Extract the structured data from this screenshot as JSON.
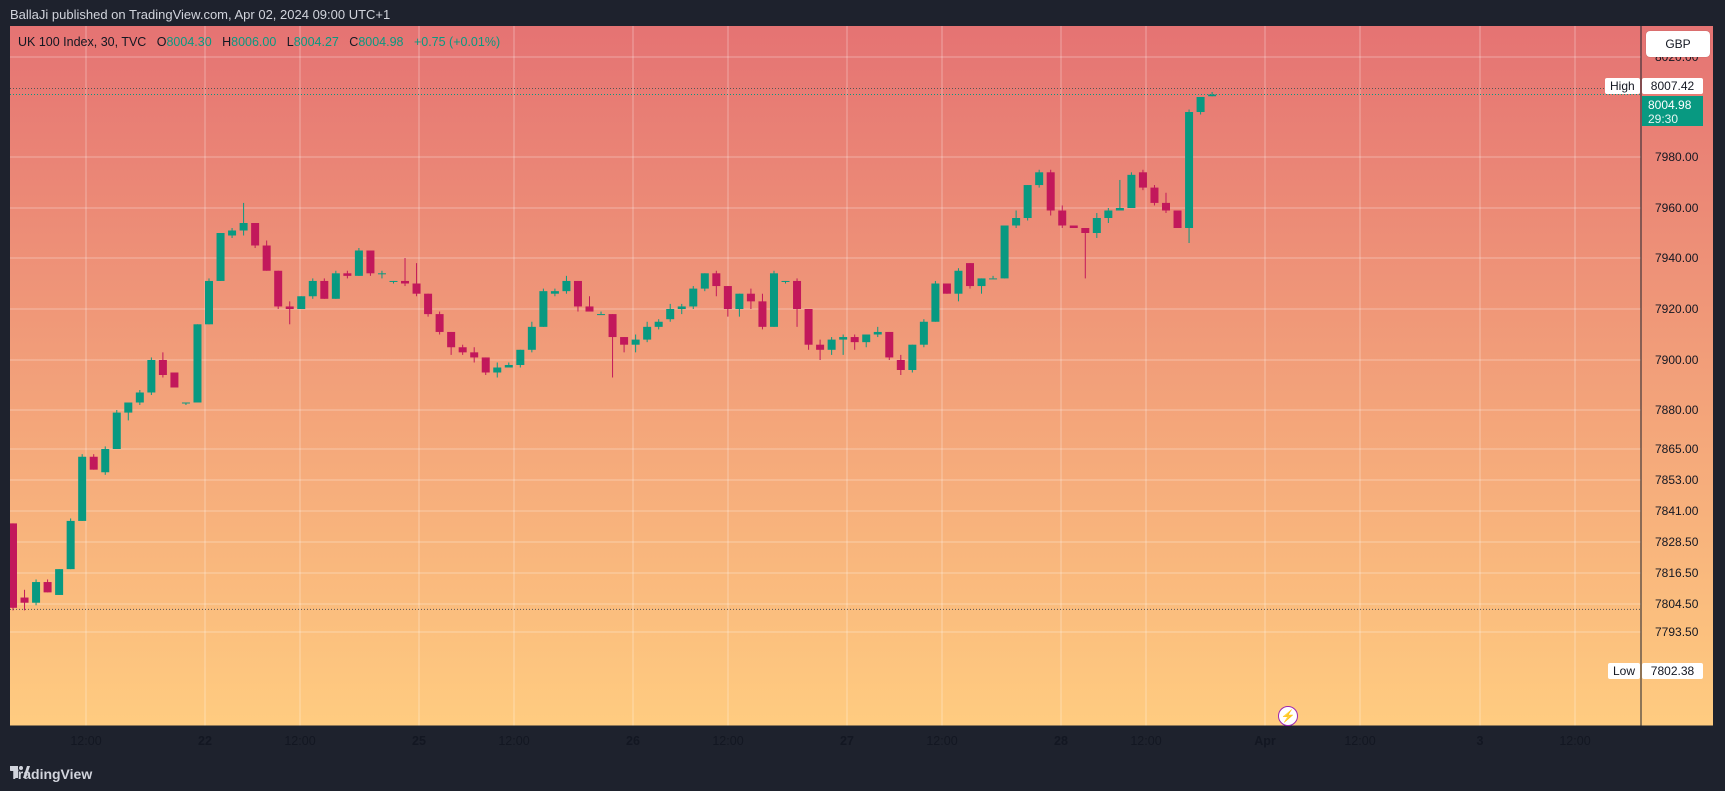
{
  "header": {
    "published_line": "BallaJi published on TradingView.com, Apr 02, 2024 09:00 UTC+1"
  },
  "footer": {
    "logo_text": "TradingView"
  },
  "legend": {
    "symbol": "UK 100 Index, 30, TVC",
    "o_label": "O",
    "o_value": "8004.30",
    "h_label": "H",
    "h_value": "8006.00",
    "l_label": "L",
    "l_value": "8004.27",
    "c_label": "C",
    "c_value": "8004.98",
    "change": "+0.75 (+0.01%)"
  },
  "currency_button": "GBP",
  "price_markers": {
    "high_label": "High",
    "high_value": "8007.42",
    "low_label": "Low",
    "low_value": "7802.38",
    "last_price": "8004.98",
    "countdown": "29:30"
  },
  "colors": {
    "up": "#089981",
    "down": "#c2185b",
    "bg_top": "#e57373",
    "bg_bottom": "#ffcc80",
    "frame": "#1e222d"
  },
  "chart_data": {
    "type": "candlestick",
    "symbol": "UK 100 Index",
    "interval": "30",
    "source": "TVC",
    "currency": "GBP",
    "y_axis_ticks": [
      "8020.00",
      "7980.00",
      "7960.00",
      "7940.00",
      "7920.00",
      "7900.00",
      "7880.00",
      "7865.00",
      "7853.00",
      "7841.00",
      "7828.50",
      "7816.50",
      "7804.50",
      "7793.50"
    ],
    "x_axis_ticks": [
      "12:00",
      "22",
      "12:00",
      "25",
      "12:00",
      "26",
      "12:00",
      "27",
      "12:00",
      "28",
      "12:00",
      "Apr",
      "12:00",
      "3",
      "12:00"
    ],
    "y_scale": "non-linear (compressed below 7880)",
    "grid": true,
    "high": 8007.42,
    "low": 7802.38,
    "ohlc": [
      [
        7836,
        7836,
        7802,
        7803
      ],
      [
        7807,
        7810,
        7802,
        7805
      ],
      [
        7805,
        7814,
        7804,
        7813
      ],
      [
        7813,
        7814,
        7809,
        7809
      ],
      [
        7808,
        7818,
        7808,
        7818
      ],
      [
        7818,
        7838,
        7818,
        7837
      ],
      [
        7837,
        7863,
        7837,
        7862
      ],
      [
        7862,
        7863,
        7857,
        7857
      ],
      [
        7856,
        7866,
        7855,
        7865
      ],
      [
        7865,
        7880,
        7865,
        7879
      ],
      [
        7879,
        7883,
        7876,
        7883
      ],
      [
        7883,
        7888,
        7882,
        7887
      ],
      [
        7887,
        7901,
        7886,
        7900
      ],
      [
        7900,
        7903,
        7893,
        7894
      ],
      [
        7895,
        7895,
        7889,
        7889
      ],
      [
        7883,
        7883,
        7882,
        7883
      ],
      [
        7883,
        7914,
        7883,
        7914
      ],
      [
        7914,
        7932,
        7914,
        7931
      ],
      [
        7931,
        7950,
        7931,
        7950
      ],
      [
        7949,
        7952,
        7948,
        7951
      ],
      [
        7951,
        7962,
        7949,
        7954
      ],
      [
        7954,
        7954,
        7944,
        7945
      ],
      [
        7945,
        7947,
        7935,
        7935
      ],
      [
        7935,
        7935,
        7920,
        7921
      ],
      [
        7921,
        7923,
        7914,
        7920
      ],
      [
        7920,
        7925,
        7920,
        7925
      ],
      [
        7925,
        7932,
        7924,
        7931
      ],
      [
        7931,
        7932,
        7924,
        7924
      ],
      [
        7924,
        7935,
        7924,
        7934
      ],
      [
        7934,
        7935,
        7932,
        7933
      ],
      [
        7933,
        7944,
        7933,
        7943
      ],
      [
        7943,
        7943,
        7933,
        7934
      ],
      [
        7934,
        7935,
        7932,
        7934
      ],
      [
        7931,
        7931,
        7930,
        7931
      ],
      [
        7931,
        7940,
        7929,
        7930
      ],
      [
        7930,
        7938,
        7925,
        7926
      ],
      [
        7926,
        7926,
        7917,
        7918
      ],
      [
        7918,
        7919,
        7910,
        7911
      ],
      [
        7911,
        7911,
        7902,
        7905
      ],
      [
        7905,
        7906,
        7902,
        7903
      ],
      [
        7903,
        7905,
        7899,
        7901
      ],
      [
        7901,
        7901,
        7894,
        7895
      ],
      [
        7895,
        7899,
        7893,
        7897
      ],
      [
        7897,
        7899,
        7897,
        7898
      ],
      [
        7898,
        7904,
        7897,
        7904
      ],
      [
        7904,
        7915,
        7903,
        7913
      ],
      [
        7913,
        7928,
        7913,
        7927
      ],
      [
        7926,
        7928,
        7925,
        7927
      ],
      [
        7927,
        7933,
        7926,
        7931
      ],
      [
        7931,
        7931,
        7919,
        7921
      ],
      [
        7921,
        7925,
        7919,
        7919
      ],
      [
        7918,
        7919,
        7918,
        7918
      ],
      [
        7918,
        7918,
        7893,
        7909
      ],
      [
        7909,
        7909,
        7903,
        7906
      ],
      [
        7906,
        7910,
        7903,
        7908
      ],
      [
        7908,
        7915,
        7907,
        7913
      ],
      [
        7913,
        7916,
        7912,
        7915
      ],
      [
        7916,
        7922,
        7915,
        7920
      ],
      [
        7920,
        7922,
        7918,
        7921
      ],
      [
        7921,
        7929,
        7920,
        7928
      ],
      [
        7928,
        7934,
        7927,
        7934
      ],
      [
        7934,
        7935,
        7925,
        7929
      ],
      [
        7929,
        7929,
        7917,
        7920
      ],
      [
        7920,
        7926,
        7917,
        7926
      ],
      [
        7926,
        7928,
        7920,
        7923
      ],
      [
        7923,
        7926,
        7912,
        7913
      ],
      [
        7913,
        7935,
        7913,
        7934
      ],
      [
        7931,
        7931,
        7930,
        7931
      ],
      [
        7931,
        7932,
        7913,
        7920
      ],
      [
        7920,
        7920,
        7904,
        7906
      ],
      [
        7906,
        7908,
        7900,
        7904
      ],
      [
        7904,
        7909,
        7902,
        7908
      ],
      [
        7908,
        7910,
        7902,
        7909
      ],
      [
        7909,
        7910,
        7904,
        7907
      ],
      [
        7907,
        7910,
        7905,
        7910
      ],
      [
        7910,
        7913,
        7909,
        7911
      ],
      [
        7911,
        7911,
        7900,
        7901
      ],
      [
        7900,
        7902,
        7894,
        7896
      ],
      [
        7896,
        7906,
        7895,
        7906
      ],
      [
        7906,
        7916,
        7905,
        7915
      ],
      [
        7915,
        7931,
        7915,
        7930
      ],
      [
        7930,
        7930,
        7926,
        7926
      ],
      [
        7926,
        7936,
        7923,
        7935
      ],
      [
        7938,
        7938,
        7928,
        7929
      ],
      [
        7929,
        7932,
        7926,
        7932
      ],
      [
        7932,
        7933,
        7932,
        7932
      ],
      [
        7932,
        7953,
        7932,
        7953
      ],
      [
        7953,
        7959,
        7952,
        7956
      ],
      [
        7956,
        7969,
        7955,
        7969
      ],
      [
        7969,
        7975,
        7968,
        7974
      ],
      [
        7974,
        7975,
        7957,
        7959
      ],
      [
        7959,
        7961,
        7952,
        7953
      ],
      [
        7953,
        7953,
        7952,
        7952
      ],
      [
        7952,
        7952,
        7932,
        7950
      ],
      [
        7950,
        7958,
        7948,
        7956
      ],
      [
        7956,
        7960,
        7954,
        7959
      ],
      [
        7959,
        7971,
        7959,
        7960
      ],
      [
        7960,
        7974,
        7960,
        7973
      ],
      [
        7974,
        7975,
        7967,
        7968
      ],
      [
        7968,
        7969,
        7961,
        7962
      ],
      [
        7962,
        7966,
        7958,
        7959
      ],
      [
        7959,
        7959,
        7952,
        7952
      ],
      [
        7952,
        7999,
        7946,
        7998
      ],
      [
        7998,
        8004,
        7997,
        8004
      ],
      [
        8004.3,
        8006,
        8004.27,
        8004.98
      ]
    ]
  }
}
